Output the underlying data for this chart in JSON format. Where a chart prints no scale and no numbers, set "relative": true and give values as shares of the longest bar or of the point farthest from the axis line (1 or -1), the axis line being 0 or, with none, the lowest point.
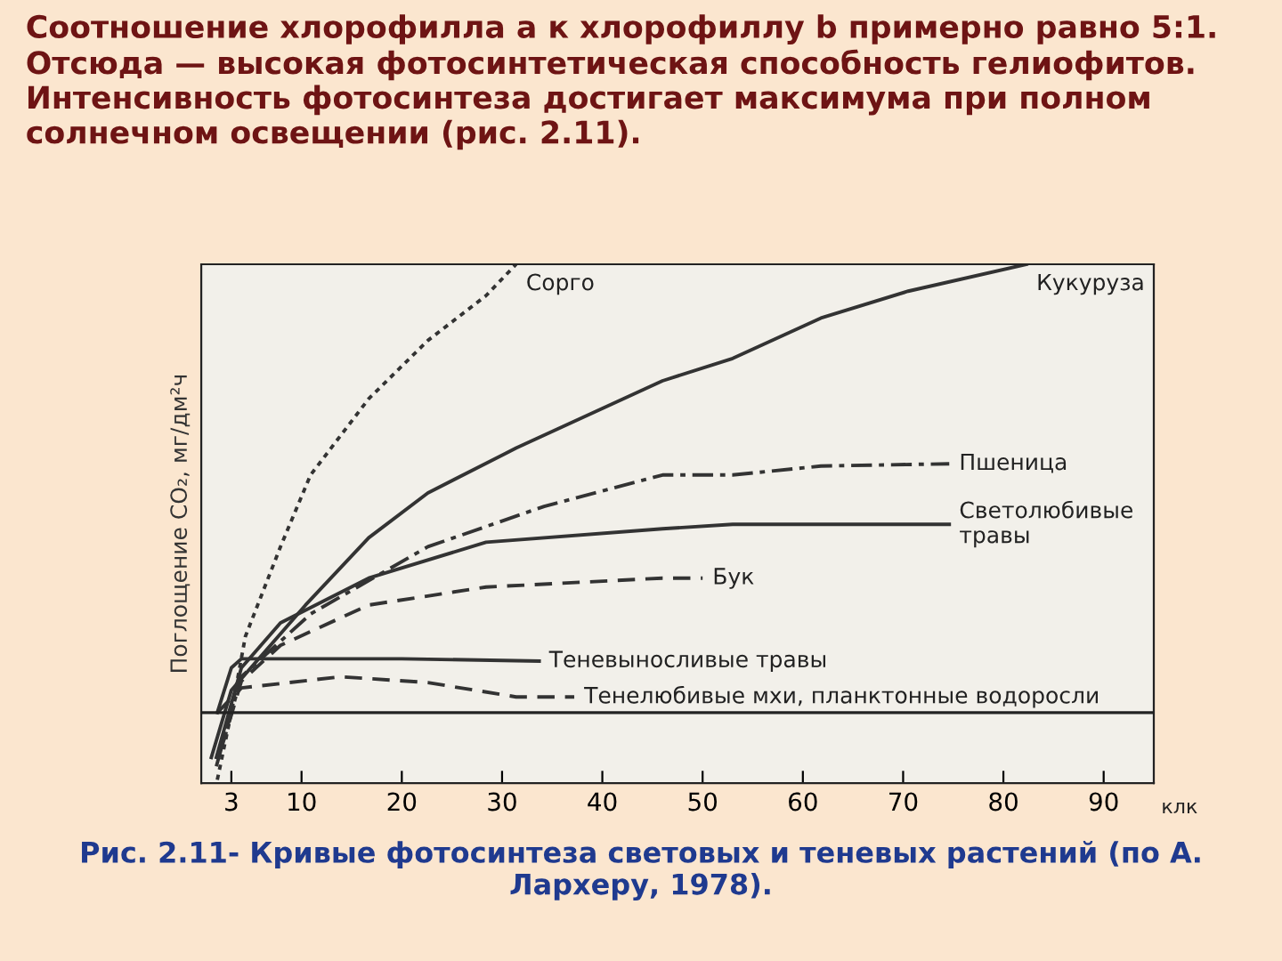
{
  "chart_data": {
    "type": "line",
    "relative": true,
    "title": "Соотношение хлорофилла a к хлорофиллу b примерно равно 5:1. Отсюда — высокая фотосинтетическая способность гелиофитов. Интенсивность фотосинтеза достигает максимума при полном солнечном освещении (рис. 2.11).",
    "xlabel": "клк",
    "ylabel": "Поглощение CO₂, мг/дм²ч",
    "annotations": [
      "Рис. 2.11- Кривые фотосинтеза световых и теневых растений (по А. Лархеру, 1978)."
    ],
    "xlim": [
      0,
      95
    ],
    "xticks": [
      3,
      10,
      20,
      30,
      40,
      50,
      60,
      70,
      80,
      90
    ],
    "grid": false,
    "legend": false,
    "marker": "none",
    "series": [
      {
        "name": "Сорго",
        "color": "#333333",
        "line_style": "dotted",
        "x": [
          1.6,
          3,
          4.4,
          7.9,
          10.9,
          16.7,
          22.6,
          28.4,
          31.4
        ],
        "values": [
          -0.15,
          0,
          0.17,
          0.37,
          0.53,
          0.7,
          0.83,
          0.93,
          1.0
        ]
      },
      {
        "name": "Кукуруза",
        "color": "#333333",
        "line_style": "solid",
        "x": [
          1,
          3,
          10.4,
          16.7,
          22.6,
          31.4,
          46,
          53,
          61.8,
          70.5,
          82.3
        ],
        "values": [
          -0.1,
          0.05,
          0.24,
          0.39,
          0.49,
          0.59,
          0.74,
          0.79,
          0.88,
          0.94,
          1.0
        ]
      },
      {
        "name": "Пшеница",
        "color": "#333333",
        "line_style": "dashdot",
        "x": [
          1.5,
          4,
          10.9,
          22.6,
          34.2,
          46,
          53,
          61.8,
          74.6
        ],
        "values": [
          -0.12,
          0.08,
          0.22,
          0.37,
          0.46,
          0.53,
          0.53,
          0.55,
          0.555
        ]
      },
      {
        "name": "Светолюбивые\nтравы",
        "color": "#333333",
        "line_style": "solid",
        "x": [
          1.5,
          4,
          7.9,
          16.7,
          28.4,
          46,
          53,
          74.6
        ],
        "values": [
          -0.1,
          0.1,
          0.2,
          0.3,
          0.38,
          0.41,
          0.42,
          0.42
        ]
      },
      {
        "name": "Бук",
        "color": "#333333",
        "line_style": "dashed",
        "x": [
          2,
          4,
          7.9,
          16.7,
          28.4,
          46,
          50
        ],
        "values": [
          -0.08,
          0.07,
          0.15,
          0.24,
          0.28,
          0.3,
          0.3
        ]
      },
      {
        "name": "Теневыносливые травы",
        "color": "#333333",
        "line_style": "solid",
        "x": [
          1.6,
          3,
          4,
          20,
          33.7
        ],
        "values": [
          0,
          0.1,
          0.12,
          0.12,
          0.115
        ]
      },
      {
        "name": "Тенелюбивые мхи, планктонные водоросли",
        "color": "#333333",
        "line_style": "dashed",
        "x": [
          1.6,
          4,
          13.9,
          22.6,
          31.4,
          37.2
        ],
        "values": [
          0,
          0.055,
          0.08,
          0.067,
          0.035,
          0.035
        ]
      }
    ]
  }
}
